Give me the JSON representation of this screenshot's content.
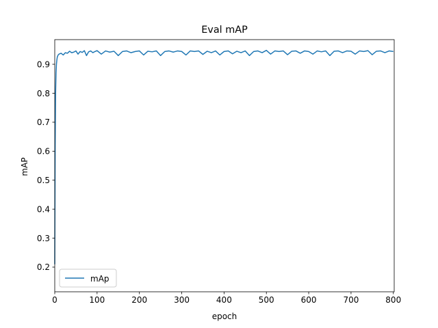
{
  "chart_data": {
    "type": "line",
    "title": "Eval mAP",
    "xlabel": "epoch",
    "ylabel": "mAP",
    "xlim": [
      0,
      802
    ],
    "ylim": [
      0.115,
      0.985
    ],
    "x_ticks": [
      0,
      100,
      200,
      300,
      400,
      500,
      600,
      700,
      800
    ],
    "y_ticks": [
      0.2,
      0.3,
      0.4,
      0.5,
      0.6,
      0.7,
      0.8,
      0.9
    ],
    "grid": false,
    "legend_position": "lower-left",
    "series": [
      {
        "name": "mAp",
        "color": "#1f77b4",
        "x": [
          0,
          1,
          2,
          3,
          4,
          5,
          6,
          8,
          10,
          15,
          20,
          25,
          30,
          35,
          40,
          45,
          50,
          55,
          60,
          65,
          70,
          75,
          80,
          85,
          90,
          95,
          100,
          110,
          120,
          130,
          140,
          150,
          160,
          170,
          180,
          190,
          200,
          210,
          220,
          230,
          240,
          250,
          260,
          270,
          280,
          290,
          300,
          310,
          320,
          330,
          340,
          350,
          360,
          370,
          380,
          390,
          400,
          410,
          420,
          430,
          440,
          450,
          460,
          470,
          480,
          490,
          500,
          510,
          520,
          530,
          540,
          550,
          560,
          570,
          580,
          590,
          600,
          610,
          620,
          630,
          640,
          650,
          660,
          670,
          680,
          690,
          700,
          710,
          720,
          730,
          740,
          750,
          760,
          770,
          780,
          790,
          800
        ],
        "y": [
          0.21,
          0.62,
          0.8,
          0.87,
          0.9,
          0.915,
          0.925,
          0.932,
          0.935,
          0.938,
          0.932,
          0.94,
          0.938,
          0.945,
          0.94,
          0.942,
          0.946,
          0.935,
          0.944,
          0.941,
          0.947,
          0.93,
          0.943,
          0.946,
          0.94,
          0.944,
          0.947,
          0.935,
          0.946,
          0.942,
          0.945,
          0.93,
          0.944,
          0.946,
          0.94,
          0.944,
          0.946,
          0.932,
          0.945,
          0.943,
          0.946,
          0.93,
          0.944,
          0.946,
          0.942,
          0.946,
          0.944,
          0.932,
          0.946,
          0.944,
          0.946,
          0.934,
          0.945,
          0.94,
          0.946,
          0.932,
          0.944,
          0.946,
          0.936,
          0.945,
          0.94,
          0.946,
          0.93,
          0.944,
          0.946,
          0.94,
          0.948,
          0.935,
          0.946,
          0.944,
          0.946,
          0.933,
          0.945,
          0.946,
          0.938,
          0.946,
          0.944,
          0.935,
          0.946,
          0.943,
          0.946,
          0.93,
          0.945,
          0.946,
          0.94,
          0.946,
          0.945,
          0.935,
          0.946,
          0.944,
          0.947,
          0.933,
          0.945,
          0.946,
          0.94,
          0.946,
          0.944
        ]
      }
    ]
  }
}
